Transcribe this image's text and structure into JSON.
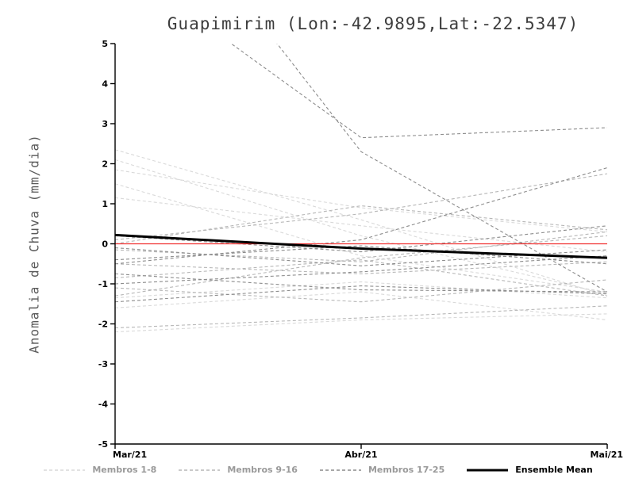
{
  "title": "Guapimirim (Lon:-42.9895,Lat:-22.5347)",
  "ylabel": "Anomalia de Chuva (mm/dia)",
  "chart_data": {
    "type": "line",
    "x_categories": [
      "Mar/21",
      "Abr/21",
      "Mai/21"
    ],
    "ylim": [
      -5,
      5
    ],
    "yticks": [
      -5,
      -4,
      -3,
      -2,
      -1,
      0,
      1,
      2,
      3,
      4,
      5
    ],
    "grid": false,
    "legend_position": "bottom",
    "axis_color": "#000000",
    "zero_line": {
      "name": "Zero",
      "color": "#f03030",
      "values": [
        0,
        0,
        0
      ]
    },
    "ensemble_mean": {
      "name": "Ensemble Mean",
      "color": "#000000",
      "values": [
        0.22,
        -0.12,
        -0.35
      ]
    },
    "groups": [
      {
        "name": "Membros 1-8",
        "color": "#d9d9d9",
        "members": [
          [
            2.35,
            0.6,
            -1.3
          ],
          [
            2.1,
            0.2,
            -1.25
          ],
          [
            1.85,
            0.9,
            0.3
          ],
          [
            1.5,
            -0.3,
            -1.2
          ],
          [
            1.15,
            0.45,
            -0.2
          ],
          [
            -1.35,
            -0.95,
            -1.35
          ],
          [
            -1.6,
            -1.2,
            -1.9
          ],
          [
            -2.2,
            -1.9,
            -1.75
          ]
        ]
      },
      {
        "name": "Membros 9-16",
        "color": "#b7b7b7",
        "members": [
          [
            0.1,
            0.75,
            1.75
          ],
          [
            0.0,
            0.95,
            0.35
          ],
          [
            -0.15,
            -0.45,
            0.3
          ],
          [
            -0.5,
            -0.75,
            -0.45
          ],
          [
            -0.85,
            -0.4,
            -1.3
          ],
          [
            -1.1,
            -1.45,
            -0.9
          ],
          [
            -1.3,
            -0.35,
            0.2
          ],
          [
            -2.1,
            -1.85,
            -1.55
          ]
        ]
      },
      {
        "name": "Membros 17-25",
        "color": "#8c8c8c",
        "members": [
          [
            7.1,
            2.65,
            2.9
          ],
          [
            10.2,
            2.3,
            -1.2
          ],
          [
            -0.5,
            0.1,
            1.9
          ],
          [
            0.2,
            -0.2,
            0.45
          ],
          [
            -0.1,
            -0.55,
            -0.15
          ],
          [
            -0.4,
            -0.05,
            -0.5
          ],
          [
            -0.75,
            -1.15,
            -1.2
          ],
          [
            -1.0,
            -0.7,
            -0.3
          ],
          [
            -1.45,
            -1.05,
            -1.25
          ]
        ]
      }
    ]
  },
  "legend": {
    "items": [
      {
        "label": "Membros 1-8",
        "color": "#d9d9d9",
        "style": "dashed"
      },
      {
        "label": "Membros 9-16",
        "color": "#b7b7b7",
        "style": "dashed"
      },
      {
        "label": "Membros 17-25",
        "color": "#8c8c8c",
        "style": "dashed"
      },
      {
        "label": "Ensemble Mean",
        "color": "#000000",
        "style": "solid"
      }
    ]
  }
}
